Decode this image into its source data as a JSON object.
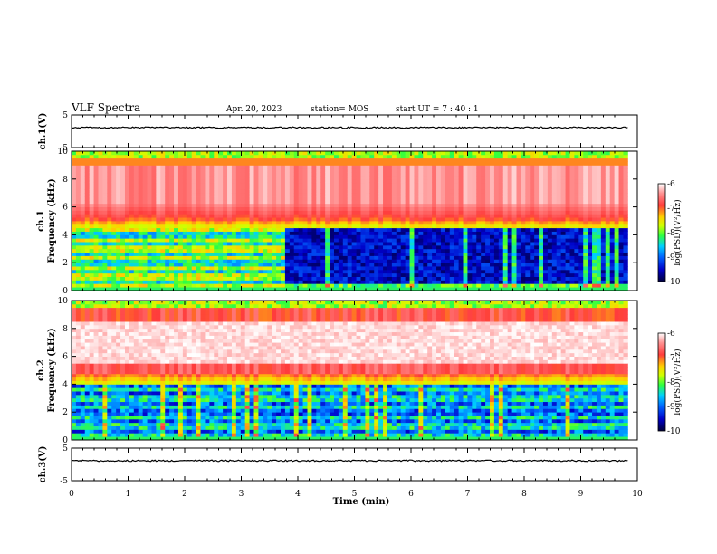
{
  "header": {
    "title": "VLF Spectra",
    "date": "Apr. 20, 2023",
    "station": "station= MOS",
    "start": "start  UT  =   7 : 40 : 1"
  },
  "chart_data": [
    {
      "type": "line",
      "panel": "ch1-waveform",
      "ylabel": "ch.1(V)",
      "ylim": [
        -5,
        5
      ],
      "yticks": [
        "5",
        "-5"
      ],
      "baseline_value": 0
    },
    {
      "type": "heatmap",
      "panel": "ch1-spectrogram",
      "ylabel": "ch.1\nFrequency (kHz)",
      "ylabel_line1": "ch.1",
      "ylabel_line2": "Frequency (kHz)",
      "ylim": [
        0,
        10
      ],
      "yticks": [
        "0",
        "2",
        "4",
        "6",
        "8",
        "10"
      ],
      "colorbar": {
        "label": "log(PSD)(V²/Hz)",
        "ticks": [
          "-6",
          "-7",
          "-8",
          "-9",
          "-10"
        ],
        "range": [
          -10,
          -6
        ]
      },
      "transition_time_min": 3.75
    },
    {
      "type": "heatmap",
      "panel": "ch2-spectrogram",
      "ylabel_line1": "ch.2",
      "ylabel_line2": "Frequency (kHz)",
      "ylim": [
        0,
        10
      ],
      "yticks": [
        "0",
        "2",
        "4",
        "6",
        "8",
        "10"
      ],
      "colorbar": {
        "label": "log(PSD)(V²/Hz)",
        "ticks": [
          "-6",
          "-7",
          "-8",
          "-9",
          "-10"
        ],
        "range": [
          -10,
          -6
        ]
      }
    },
    {
      "type": "line",
      "panel": "ch3-waveform",
      "ylabel": "ch.3(V)",
      "ylim": [
        -5,
        5
      ],
      "yticks": [
        "5",
        "-5"
      ],
      "baseline_value": 0
    }
  ],
  "xaxis": {
    "label": "Time (min)",
    "xlim": [
      0,
      10
    ],
    "ticks": [
      "0",
      "1",
      "2",
      "3",
      "4",
      "5",
      "6",
      "7",
      "8",
      "9",
      "10"
    ],
    "data_end_min": 9.83
  },
  "colors": {
    "colormap": [
      "#00003a",
      "#0000c8",
      "#0064ff",
      "#00d0ff",
      "#30ff40",
      "#d0ff00",
      "#ffd000",
      "#ff3c3c",
      "#ffffff"
    ]
  }
}
